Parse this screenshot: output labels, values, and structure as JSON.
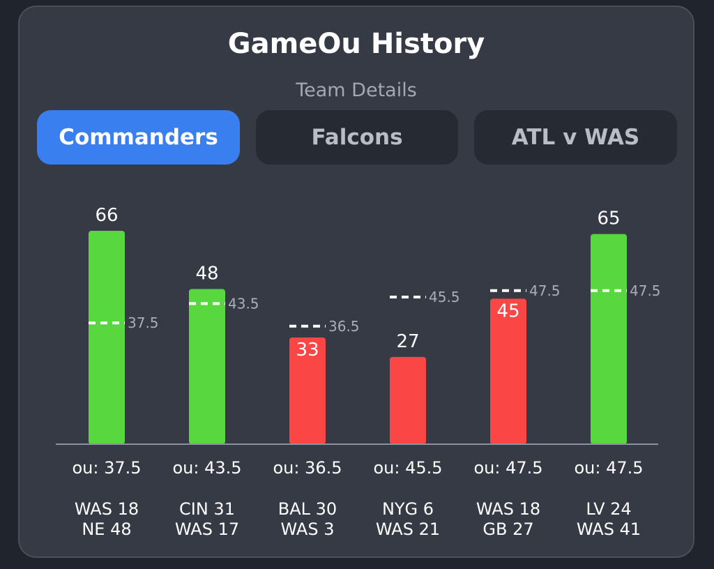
{
  "header": {
    "title": "GameOu History",
    "subtitle": "Team Details"
  },
  "tabs": [
    {
      "label": "Commanders",
      "active": true
    },
    {
      "label": "Falcons",
      "active": false
    },
    {
      "label": "ATL v WAS",
      "active": false
    }
  ],
  "colors": {
    "over": "#58d83e",
    "under": "#fb4646",
    "active_tab": "#3a7ff0",
    "line": "#ffffff"
  },
  "chart_data": {
    "type": "bar",
    "ylim": [
      0,
      70
    ],
    "grid": false,
    "categories": [
      "ou: 37.5",
      "ou: 43.5",
      "ou: 36.5",
      "ou: 45.5",
      "ou: 47.5",
      "ou: 47.5"
    ],
    "values": [
      66,
      48,
      33,
      27,
      45,
      65
    ],
    "ou_lines": [
      37.5,
      43.5,
      36.5,
      45.5,
      47.5,
      47.5
    ],
    "result": [
      "over",
      "over",
      "under",
      "under",
      "under",
      "over"
    ],
    "games": [
      [
        "WAS 18",
        "NE 48"
      ],
      [
        "CIN 31",
        "WAS 17"
      ],
      [
        "BAL 30",
        "WAS 3"
      ],
      [
        "NYG 6",
        "WAS 21"
      ],
      [
        "WAS 18",
        "GB 27"
      ],
      [
        "LV 24",
        "WAS 41"
      ]
    ]
  }
}
